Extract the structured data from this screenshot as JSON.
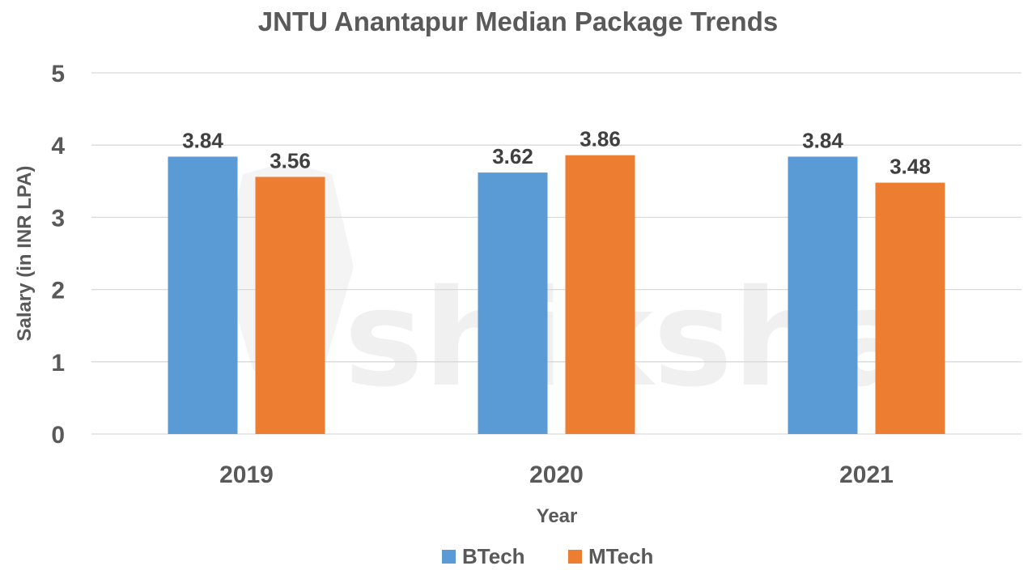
{
  "chart_data": {
    "type": "bar",
    "title": "JNTU Anantapur Median Package Trends",
    "xlabel": "Year",
    "ylabel": "Salary (in INR LPA)",
    "categories": [
      "2019",
      "2020",
      "2021"
    ],
    "series": [
      {
        "name": "BTech",
        "values": [
          3.84,
          3.62,
          3.84
        ],
        "color": "#5B9BD5"
      },
      {
        "name": "MTech",
        "values": [
          3.56,
          3.86,
          3.48
        ],
        "color": "#ED7D31"
      }
    ],
    "ylim": [
      0,
      5
    ],
    "yticks": [
      0,
      1,
      2,
      3,
      4,
      5
    ],
    "grid": true,
    "legend_position": "bottom-center",
    "data_labels": true
  },
  "watermark": {
    "brand": "shiksha"
  },
  "colors": {
    "text": "#595959",
    "data_label": "#404040",
    "gridline": "#D9D9D9"
  }
}
